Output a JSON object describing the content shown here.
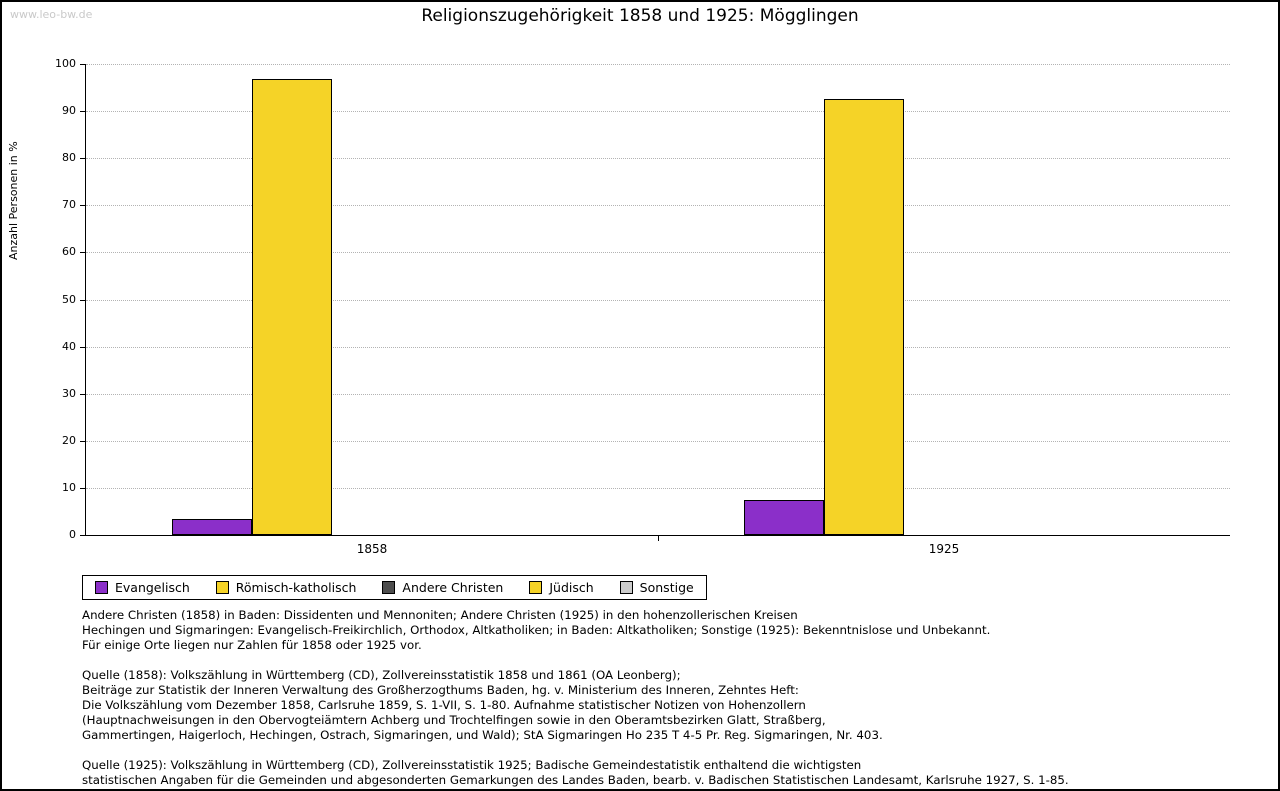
{
  "page": {
    "watermark": "www.leo-bw.de",
    "title": "Religionszugehörigkeit 1858 und 1925: Mögglingen"
  },
  "chart_data": {
    "type": "bar",
    "title": "Religionszugehörigkeit 1858 und 1925: Mögglingen",
    "categories": [
      "1858",
      "1925"
    ],
    "series": [
      {
        "name": "Evangelisch",
        "color": "#8b2fc9",
        "values": [
          3.4,
          7.4
        ]
      },
      {
        "name": "Römisch-katholisch",
        "color": "#f5d327",
        "values": [
          96.8,
          92.6
        ]
      },
      {
        "name": "Andere Christen",
        "color": "#4d4d4d",
        "values": [
          0,
          0
        ]
      },
      {
        "name": "Jüdisch",
        "color": "#f5d327",
        "values": [
          0,
          0
        ]
      },
      {
        "name": "Sonstige",
        "color": "#cccccc",
        "values": [
          0,
          0
        ]
      }
    ],
    "xlabel": "",
    "ylabel": "Anzahl Personen in %",
    "ylim": [
      0,
      100
    ],
    "ytick_step": 10,
    "grid": true,
    "legend_position": "bottom-left"
  },
  "footnotes": [
    "Andere Christen (1858) in Baden: Dissidenten und Mennoniten; Andere Christen (1925) in den hohenzollerischen Kreisen",
    "Hechingen und Sigmaringen: Evangelisch-Freikirchlich, Orthodox, Altkatholiken; in Baden: Altkatholiken; Sonstige (1925): Bekenntnislose und Unbekannt.",
    "Für einige Orte liegen nur Zahlen für 1858 oder 1925 vor.",
    "",
    "Quelle (1858): Volkszählung in Württemberg (CD), Zollvereinsstatistik 1858 und 1861 (OA Leonberg);",
    "Beiträge zur Statistik der Inneren Verwaltung des Großherzogthums Baden, hg. v. Ministerium des Inneren, Zehntes Heft:",
    "Die Volkszählung vom Dezember 1858, Carlsruhe 1859, S. 1-VII, S. 1-80. Aufnahme statistischer Notizen von Hohenzollern",
    "(Hauptnachweisungen in den Obervogteiämtern Achberg und Trochtelfingen sowie in den Oberamtsbezirken Glatt, Straßberg,",
    "Gammertingen, Haigerloch, Hechingen, Ostrach, Sigmaringen, und Wald); StA Sigmaringen Ho 235 T 4-5 Pr. Reg. Sigmaringen, Nr. 403.",
    "",
    "Quelle (1925): Volkszählung in Württemberg (CD), Zollvereinsstatistik 1925; Badische Gemeindestatistik enthaltend die wichtigsten",
    "statistischen Angaben für die Gemeinden und abgesonderten Gemarkungen des Landes Baden, bearb. v. Badischen Statistischen Landesamt, Karlsruhe 1927, S. 1-85."
  ]
}
